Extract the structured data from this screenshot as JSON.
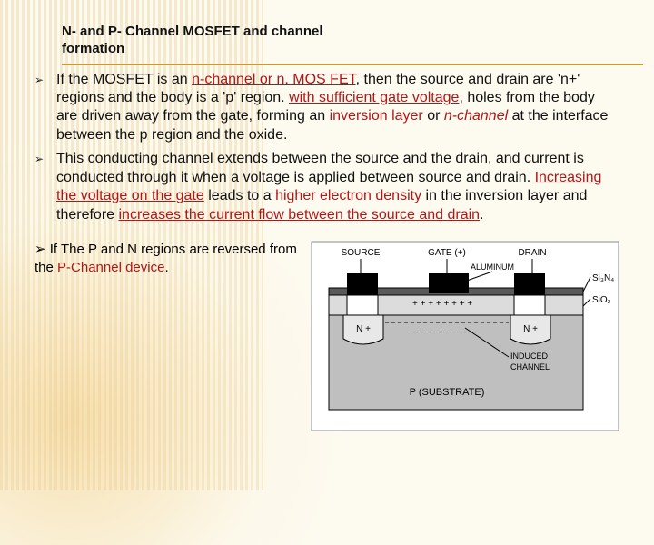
{
  "title": {
    "line1": "N-  and P- Channel MOSFET and channel",
    "line2": "formation"
  },
  "bullets": [
    {
      "runs": [
        {
          "t": "If the MOSFET is an "
        },
        {
          "t": "n-channel or n. MOS FET",
          "red": true,
          "ul": true
        },
        {
          "t": ", then the source and drain are 'n+' regions and the body is a 'p' region. "
        },
        {
          "t": "with sufficient gate voltage",
          "red": true,
          "ul": true
        },
        {
          "t": ", holes from the body are driven away from the gate, forming an "
        },
        {
          "t": "inversion layer",
          "red": true
        },
        {
          "t": " or "
        },
        {
          "t": "n-channel",
          "red": true,
          "em": true
        },
        {
          "t": " at the interface between the p region and the oxide."
        }
      ]
    },
    {
      "runs": [
        {
          "t": "This conducting channel extends between the source and the drain, and current is conducted through it when a voltage is applied between source and drain. "
        },
        {
          "t": "Increasing the voltage on the gate",
          "red": true,
          "ul": true
        },
        {
          "t": " leads to a "
        },
        {
          "t": "higher electron density",
          "red": true
        },
        {
          "t": " in the inversion layer and therefore "
        },
        {
          "t": "increases the current flow between the source and drain",
          "red": true,
          "ul": true
        },
        {
          "t": "."
        }
      ]
    }
  ],
  "lower_note": {
    "prefix": "➢ If The P and N regions are reversed from the ",
    "red": "P-Channel device",
    "suffix": "."
  },
  "diagram": {
    "labels": {
      "source": "SOURCE",
      "gate": "GATE (+)",
      "drain": "DRAIN",
      "aluminum": "ALUMINUM",
      "si3n4": "Si₃N₄",
      "sio2": "SiO₂",
      "nplus_left": "N +",
      "nplus_right": "N +",
      "induced": "INDUCED",
      "channel": "CHANNEL",
      "substrate": "P (SUBSTRATE)"
    },
    "colors": {
      "substrate": "#bfbfbf",
      "oxide": "#dcdcdc",
      "metal": "#000000",
      "nregion": "#e8e8e8",
      "outline": "#000000",
      "text": "#000000",
      "plus": "#000000",
      "minus": "#000000"
    }
  },
  "accent_color": "#c49a3a"
}
